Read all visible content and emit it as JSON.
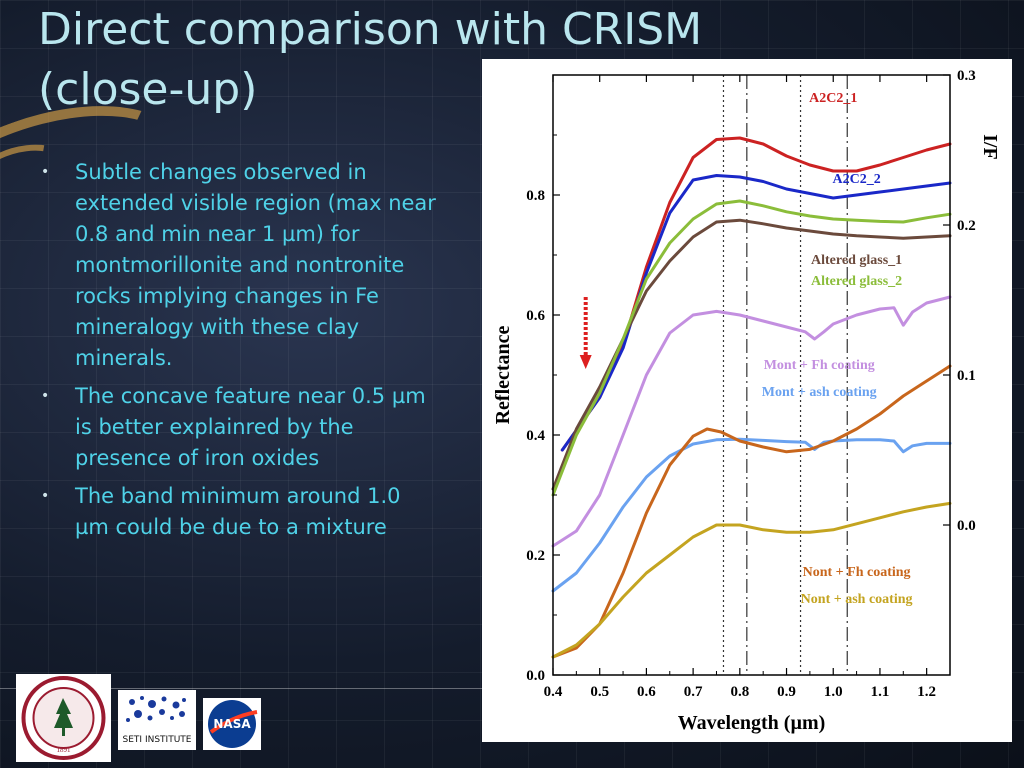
{
  "slide": {
    "title_line1": "Direct comparison with CRISM",
    "title_line2": "(close-up)",
    "bullets": [
      "Subtle changes observed in extended visible region (max near 0.8 and min near 1 µm) for montmorillonite and nontronite rocks implying changes in Fe mineralogy with these clay minerals.",
      "The concave feature near 0.5 µm is better explainred by the presence of iron oxides",
      "The band minimum around 1.0 µm could be due to a mixture"
    ],
    "logos": {
      "seti_text": "SETI INSTITUTE",
      "nasa_text": "NASA",
      "seal_year": "1891"
    }
  },
  "chart_data": {
    "type": "line",
    "xlabel": "Wavelength (µm)",
    "ylabel": "Reflectance",
    "y2label": "I/F",
    "xlim": [
      0.4,
      1.25
    ],
    "ylim": [
      0.0,
      1.0
    ],
    "y2lim": [
      -0.1,
      0.3
    ],
    "x_ticks": [
      "0.4",
      "0.5",
      "0.6",
      "0.7",
      "0.8",
      "0.9",
      "1.0",
      "1.1",
      "1.2"
    ],
    "y_ticks": [
      "0.0",
      "0.2",
      "0.4",
      "0.6",
      "0.8"
    ],
    "y2_ticks": [
      "0.0",
      "0.1",
      "0.2",
      "0.3"
    ],
    "vlines": [
      {
        "x": 0.765,
        "style": "dotted"
      },
      {
        "x": 0.815,
        "style": "dashdot"
      },
      {
        "x": 0.93,
        "style": "dotted"
      },
      {
        "x": 1.03,
        "style": "dashdot"
      }
    ],
    "arrow": {
      "x": 0.47,
      "y_from": 0.63,
      "y_to": 0.51,
      "color": "#dd2020"
    },
    "series": [
      {
        "name": "A2C2_1",
        "axis": "right",
        "color": "#cc2222",
        "x": [
          0.42,
          0.5,
          0.55,
          0.6,
          0.65,
          0.7,
          0.75,
          0.8,
          0.85,
          0.9,
          0.95,
          1.0,
          1.05,
          1.1,
          1.15,
          1.2,
          1.25
        ],
        "y": [
          0.05,
          0.085,
          0.12,
          0.172,
          0.215,
          0.245,
          0.257,
          0.258,
          0.254,
          0.246,
          0.24,
          0.236,
          0.236,
          0.24,
          0.245,
          0.25,
          0.254
        ]
      },
      {
        "name": "A2C2_2",
        "axis": "right",
        "color": "#1a28c8",
        "x": [
          0.42,
          0.5,
          0.55,
          0.6,
          0.65,
          0.7,
          0.75,
          0.8,
          0.85,
          0.9,
          0.95,
          1.0,
          1.05,
          1.1,
          1.15,
          1.2,
          1.25
        ],
        "y": [
          0.05,
          0.085,
          0.118,
          0.168,
          0.208,
          0.23,
          0.233,
          0.232,
          0.229,
          0.224,
          0.221,
          0.218,
          0.22,
          0.222,
          0.224,
          0.226,
          0.228
        ]
      },
      {
        "name": "Altered glass_1",
        "axis": "left",
        "color": "#6b4a3c",
        "x": [
          0.4,
          0.45,
          0.5,
          0.55,
          0.6,
          0.65,
          0.7,
          0.75,
          0.8,
          0.85,
          0.9,
          0.95,
          1.0,
          1.05,
          1.1,
          1.15,
          1.2,
          1.25
        ],
        "y": [
          0.31,
          0.41,
          0.48,
          0.56,
          0.64,
          0.69,
          0.73,
          0.755,
          0.758,
          0.752,
          0.745,
          0.74,
          0.735,
          0.732,
          0.73,
          0.728,
          0.73,
          0.732
        ]
      },
      {
        "name": "Altered glass_2",
        "axis": "left",
        "color": "#8bbd3a",
        "x": [
          0.4,
          0.45,
          0.5,
          0.55,
          0.6,
          0.65,
          0.7,
          0.75,
          0.8,
          0.85,
          0.9,
          0.95,
          1.0,
          1.05,
          1.1,
          1.15,
          1.2,
          1.25
        ],
        "y": [
          0.3,
          0.4,
          0.47,
          0.56,
          0.66,
          0.72,
          0.76,
          0.785,
          0.79,
          0.782,
          0.772,
          0.765,
          0.76,
          0.758,
          0.756,
          0.755,
          0.762,
          0.768
        ]
      },
      {
        "name": "Mont + Fh coating",
        "axis": "left",
        "color": "#c38fe0",
        "x": [
          0.4,
          0.45,
          0.5,
          0.55,
          0.6,
          0.65,
          0.7,
          0.75,
          0.8,
          0.85,
          0.9,
          0.94,
          0.96,
          0.98,
          1.0,
          1.05,
          1.1,
          1.13,
          1.15,
          1.17,
          1.2,
          1.25
        ],
        "y": [
          0.215,
          0.24,
          0.3,
          0.4,
          0.5,
          0.57,
          0.6,
          0.606,
          0.6,
          0.59,
          0.58,
          0.572,
          0.56,
          0.572,
          0.585,
          0.6,
          0.61,
          0.612,
          0.583,
          0.605,
          0.62,
          0.63
        ]
      },
      {
        "name": "Mont + ash coating",
        "axis": "left",
        "color": "#6aa2f0",
        "x": [
          0.4,
          0.45,
          0.5,
          0.55,
          0.6,
          0.65,
          0.7,
          0.75,
          0.8,
          0.85,
          0.9,
          0.94,
          0.96,
          0.98,
          1.0,
          1.05,
          1.1,
          1.13,
          1.15,
          1.17,
          1.2,
          1.25
        ],
        "y": [
          0.14,
          0.17,
          0.22,
          0.28,
          0.33,
          0.365,
          0.385,
          0.392,
          0.393,
          0.391,
          0.389,
          0.388,
          0.376,
          0.388,
          0.39,
          0.392,
          0.392,
          0.39,
          0.372,
          0.382,
          0.386,
          0.386
        ]
      },
      {
        "name": "Nont + Fh coating",
        "axis": "left",
        "color": "#c8661c",
        "x": [
          0.4,
          0.45,
          0.5,
          0.55,
          0.6,
          0.65,
          0.7,
          0.73,
          0.76,
          0.8,
          0.85,
          0.9,
          0.95,
          1.0,
          1.05,
          1.1,
          1.15,
          1.2,
          1.25
        ],
        "y": [
          0.03,
          0.045,
          0.085,
          0.17,
          0.27,
          0.35,
          0.398,
          0.41,
          0.405,
          0.39,
          0.38,
          0.372,
          0.376,
          0.39,
          0.41,
          0.435,
          0.465,
          0.49,
          0.515
        ]
      },
      {
        "name": "Nont + ash coating",
        "axis": "left",
        "color": "#c4a420",
        "x": [
          0.4,
          0.45,
          0.5,
          0.55,
          0.6,
          0.65,
          0.7,
          0.75,
          0.8,
          0.85,
          0.9,
          0.95,
          1.0,
          1.05,
          1.1,
          1.15,
          1.2,
          1.25
        ],
        "y": [
          0.03,
          0.05,
          0.085,
          0.13,
          0.17,
          0.2,
          0.23,
          0.25,
          0.25,
          0.242,
          0.238,
          0.238,
          0.242,
          0.252,
          0.262,
          0.272,
          0.28,
          0.286
        ]
      }
    ],
    "labels": [
      "A2C2_1",
      "A2C2_2",
      "Altered glass_1",
      "Altered glass_2",
      "Mont + Fh coating",
      "Mont + ash coating",
      "Nont + Fh coating",
      "Nont + ash coating"
    ]
  }
}
